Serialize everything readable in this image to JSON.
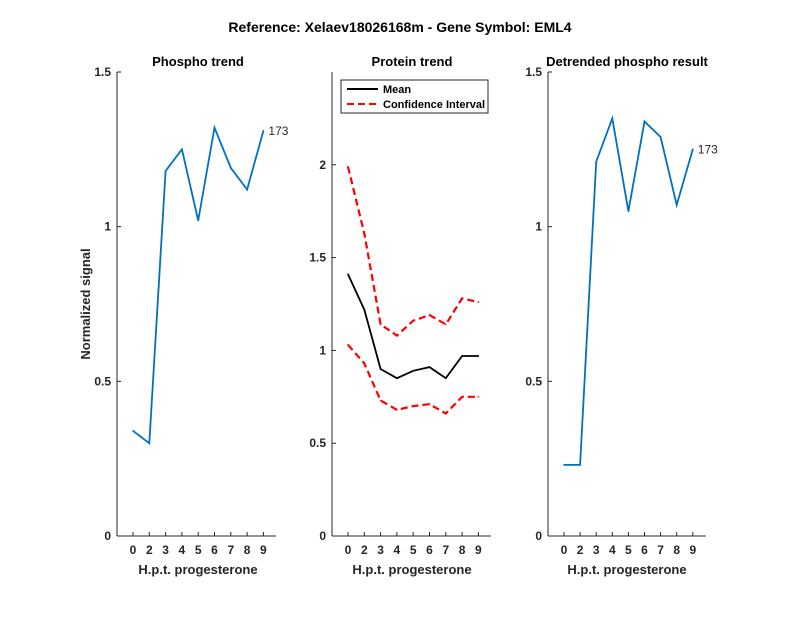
{
  "figure_title": "Reference:  Xelaev18026168m - Gene Symbol:  EML4",
  "chart_data": [
    {
      "type": "line",
      "title": "Phospho trend",
      "xlabel": "H.p.t. progesterone",
      "ylabel": "Normalized signal",
      "x_ticks": [
        "0",
        "2",
        "3",
        "4",
        "5",
        "6",
        "7",
        "8",
        "9"
      ],
      "y_ticks": [
        "0",
        "0.5",
        "1",
        "1.5"
      ],
      "ylim": [
        0,
        1.5
      ],
      "series": [
        {
          "color": "#0072BD",
          "style": "solid",
          "values": [
            0.34,
            0.3,
            1.18,
            1.25,
            1.02,
            1.32,
            1.19,
            1.12,
            1.31
          ]
        }
      ],
      "annotation": "173"
    },
    {
      "type": "line",
      "title": "Protein trend",
      "xlabel": "H.p.t. progesterone",
      "x_ticks": [
        "0",
        "2",
        "3",
        "4",
        "5",
        "6",
        "7",
        "8",
        "9"
      ],
      "y_ticks": [
        "0",
        "0.5",
        "1",
        "1.5",
        "2"
      ],
      "ylim": [
        0,
        2.5
      ],
      "legend_position": "top-left",
      "series": [
        {
          "name": "Mean",
          "color": "#000000",
          "style": "solid",
          "values": [
            1.41,
            1.22,
            0.9,
            0.85,
            0.89,
            0.91,
            0.85,
            0.97,
            0.97
          ]
        },
        {
          "name": "Confidence Interval",
          "color": "#FF0000",
          "style": "dashed",
          "values": [
            1.99,
            1.63,
            1.14,
            1.08,
            1.16,
            1.19,
            1.14,
            1.28,
            1.26
          ]
        },
        {
          "color": "#FF0000",
          "style": "dashed",
          "values": [
            1.03,
            0.93,
            0.73,
            0.68,
            0.7,
            0.71,
            0.66,
            0.75,
            0.75
          ]
        }
      ]
    },
    {
      "type": "line",
      "title": "Detrended phospho result",
      "xlabel": "H.p.t. progesterone",
      "x_ticks": [
        "0",
        "2",
        "3",
        "4",
        "5",
        "6",
        "7",
        "8",
        "9"
      ],
      "y_ticks": [
        "0",
        "0.5",
        "1",
        "1.5"
      ],
      "ylim": [
        0,
        1.5
      ],
      "series": [
        {
          "color": "#0072BD",
          "style": "solid",
          "values": [
            0.23,
            0.23,
            1.21,
            1.35,
            1.05,
            1.34,
            1.29,
            1.07,
            1.25
          ]
        }
      ],
      "annotation": "173"
    }
  ]
}
